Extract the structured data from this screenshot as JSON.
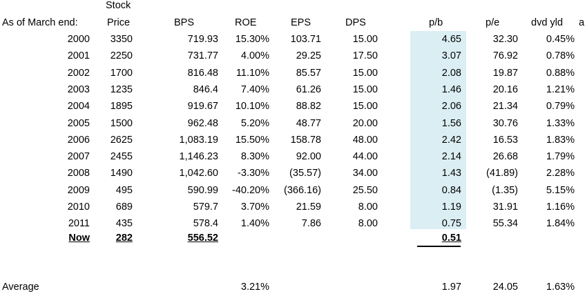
{
  "header": {
    "top": "Stock",
    "year": "As of March end:",
    "price": "Price",
    "bps": "BPS",
    "roe": "ROE",
    "eps": "EPS",
    "dps": "DPS",
    "pb": "p/b",
    "pe": "p/e",
    "dvd": "dvd yld",
    "extra": "a"
  },
  "rows": [
    {
      "year": "2000",
      "price": "3350",
      "bps": "719.93",
      "roe": "15.30%",
      "eps": "103.71",
      "dps": "15.00",
      "pb": "4.65",
      "pe": "32.30",
      "dvd": "0.45%"
    },
    {
      "year": "2001",
      "price": "2250",
      "bps": "731.77",
      "roe": "4.00%",
      "eps": "29.25",
      "dps": "17.50",
      "pb": "3.07",
      "pe": "76.92",
      "dvd": "0.78%"
    },
    {
      "year": "2002",
      "price": "1700",
      "bps": "816.48",
      "roe": "11.10%",
      "eps": "85.57",
      "dps": "15.00",
      "pb": "2.08",
      "pe": "19.87",
      "dvd": "0.88%"
    },
    {
      "year": "2003",
      "price": "1235",
      "bps": "846.4",
      "roe": "7.40%",
      "eps": "61.26",
      "dps": "15.00",
      "pb": "1.46",
      "pe": "20.16",
      "dvd": "1.21%"
    },
    {
      "year": "2004",
      "price": "1895",
      "bps": "919.67",
      "roe": "10.10%",
      "eps": "88.82",
      "dps": "15.00",
      "pb": "2.06",
      "pe": "21.34",
      "dvd": "0.79%"
    },
    {
      "year": "2005",
      "price": "1500",
      "bps": "962.48",
      "roe": "5.20%",
      "eps": "48.77",
      "dps": "20.00",
      "pb": "1.56",
      "pe": "30.76",
      "dvd": "1.33%"
    },
    {
      "year": "2006",
      "price": "2625",
      "bps": "1,083.19",
      "roe": "15.50%",
      "eps": "158.78",
      "dps": "48.00",
      "pb": "2.42",
      "pe": "16.53",
      "dvd": "1.83%"
    },
    {
      "year": "2007",
      "price": "2455",
      "bps": "1,146.23",
      "roe": "8.30%",
      "eps": "92.00",
      "dps": "44.00",
      "pb": "2.14",
      "pe": "26.68",
      "dvd": "1.79%"
    },
    {
      "year": "2008",
      "price": "1490",
      "bps": "1,042.60",
      "roe": "-3.30%",
      "eps": "(35.57)",
      "dps": "34.00",
      "pb": "1.43",
      "pe": "(41.89)",
      "dvd": "2.28%"
    },
    {
      "year": "2009",
      "price": "495",
      "bps": "590.99",
      "roe": "-40.20%",
      "eps": "(366.16)",
      "dps": "25.50",
      "pb": "0.84",
      "pe": "(1.35)",
      "dvd": "5.15%"
    },
    {
      "year": "2010",
      "price": "689",
      "bps": "579.7",
      "roe": "3.70%",
      "eps": "21.59",
      "dps": "8.00",
      "pb": "1.19",
      "pe": "31.91",
      "dvd": "1.16%"
    },
    {
      "year": "2011",
      "price": "435",
      "bps": "578.4",
      "roe": "1.40%",
      "eps": "7.86",
      "dps": "8.00",
      "pb": "0.75",
      "pe": "55.34",
      "dvd": "1.84%"
    }
  ],
  "now": {
    "year": "Now",
    "price": "282",
    "bps": "556.52",
    "pb": "0.51"
  },
  "average": {
    "label": "Average",
    "roe": "3.21%",
    "pb": "1.97",
    "pe": "24.05",
    "dvd": "1.63%"
  }
}
